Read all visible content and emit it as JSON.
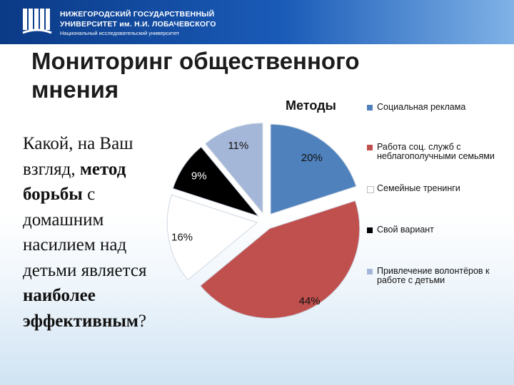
{
  "header": {
    "line1": "НИЖЕГОРОДСКИЙ ГОСУДАРСТВЕННЫЙ",
    "line2": "УНИВЕРСИТЕТ им. Н.И. ЛОБАЧЕВСКОГО",
    "line3": "Национальный исследовательский университет",
    "logo_icon": "university-logo-icon"
  },
  "slide": {
    "title": "Мониторинг общественного мнения",
    "question": {
      "p1": "Какой, на Ваш взгляд, ",
      "b1": "метод борьбы",
      "p2": " с домашним насилием над детьми является ",
      "b2": "наиболее эффективным",
      "p3": "?"
    }
  },
  "chart_data": {
    "type": "pie",
    "title": "Методы",
    "categories": [
      "Социальная реклама",
      "Работа соц. служб с неблагополучными семьями",
      "Семейные тренинги",
      "Свой вариант",
      "Привлечение волонтёров к работе с детьми"
    ],
    "values": [
      20,
      44,
      16,
      9,
      11
    ],
    "labels": [
      "20%",
      "44%",
      "16%",
      "9%",
      "11%"
    ],
    "colors": [
      "#4f81bd",
      "#c0504d",
      "#ffffff",
      "#000000",
      "#a5b7d8"
    ],
    "exploded": true,
    "legend_position": "right"
  }
}
